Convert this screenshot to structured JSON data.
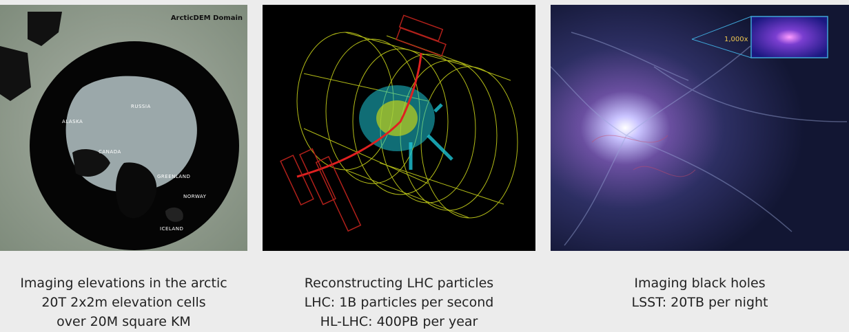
{
  "panels": [
    {
      "image_name": "arctic-map",
      "title": "ArcticDEM Domain",
      "map_labels": [
        "RUSSIA",
        "ALASKA",
        "CANADA",
        "GREENLAND",
        "NORWAY",
        "ICELAND"
      ],
      "caption": [
        "Imaging elevations in the arctic",
        "20T 2x2m elevation cells",
        "over 20M square KM"
      ]
    },
    {
      "image_name": "lhc-detector",
      "caption": [
        "Reconstructing LHC particles",
        "LHC: 1B particles per second",
        "HL-LHC: 400PB per year"
      ]
    },
    {
      "image_name": "cosmic-web",
      "zoom_label": "1,000x",
      "caption": [
        "Imaging black holes",
        "LSST: 20TB per night"
      ]
    }
  ]
}
